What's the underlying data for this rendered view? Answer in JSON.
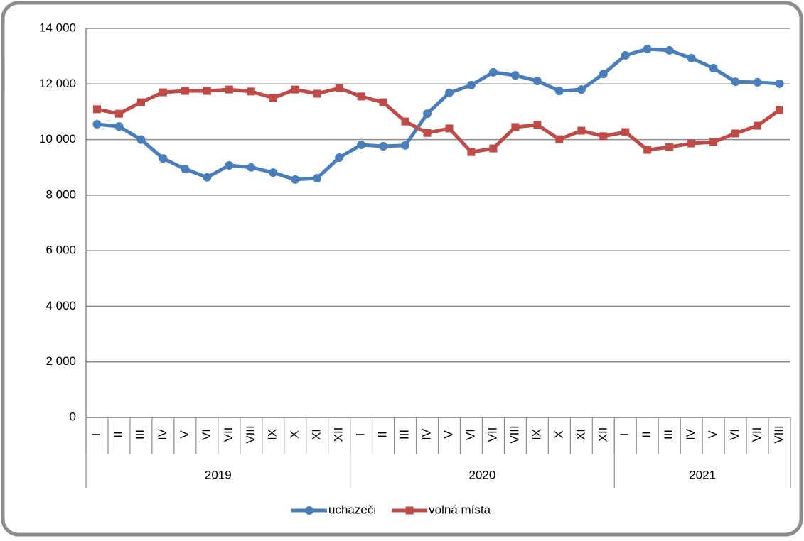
{
  "chart_data": {
    "type": "line",
    "groups": [
      {
        "label": "2019",
        "categories": [
          "I",
          "II",
          "III",
          "IV",
          "V",
          "VI",
          "VII",
          "VIII",
          "IX",
          "X",
          "XI",
          "XII"
        ]
      },
      {
        "label": "2020",
        "categories": [
          "I",
          "II",
          "III",
          "IV",
          "V",
          "VI",
          "VII",
          "VIII",
          "IX",
          "X",
          "XI",
          "XII"
        ]
      },
      {
        "label": "2021",
        "categories": [
          "I",
          "II",
          "III",
          "IV",
          "V",
          "VI",
          "VII",
          "VIII"
        ]
      }
    ],
    "series": [
      {
        "name": "uchazeči",
        "color": "#4a7ebb",
        "marker": "circle",
        "values": [
          10550,
          10470,
          10000,
          9320,
          8940,
          8640,
          9070,
          9000,
          8810,
          8560,
          8610,
          9350,
          9810,
          9760,
          9790,
          10930,
          11680,
          11960,
          12420,
          12310,
          12110,
          11750,
          11800,
          12360,
          13030,
          13260,
          13210,
          12930,
          12570,
          12080,
          12060,
          12010
        ]
      },
      {
        "name": "volná místa",
        "color": "#be4b48",
        "marker": "square",
        "values": [
          11090,
          10930,
          11340,
          11700,
          11750,
          11750,
          11800,
          11730,
          11500,
          11800,
          11650,
          11850,
          11550,
          11340,
          10650,
          10240,
          10400,
          9550,
          9680,
          10450,
          10530,
          10010,
          10320,
          10120,
          10270,
          9630,
          9730,
          9860,
          9910,
          10220,
          10500,
          11060
        ]
      }
    ],
    "ylim": [
      0,
      14000
    ],
    "yticks": [
      0,
      {
        "value": 2000,
        "label": "2 000"
      },
      {
        "value": 4000,
        "label": "4 000"
      },
      {
        "value": 6000,
        "label": "6 000"
      },
      {
        "value": 8000,
        "label": "8 000"
      },
      {
        "value": 10000,
        "label": "10 000"
      },
      {
        "value": 12000,
        "label": "12 000"
      },
      {
        "value": 14000,
        "label": "14 000"
      }
    ],
    "grid": true,
    "legend": "bottom"
  }
}
